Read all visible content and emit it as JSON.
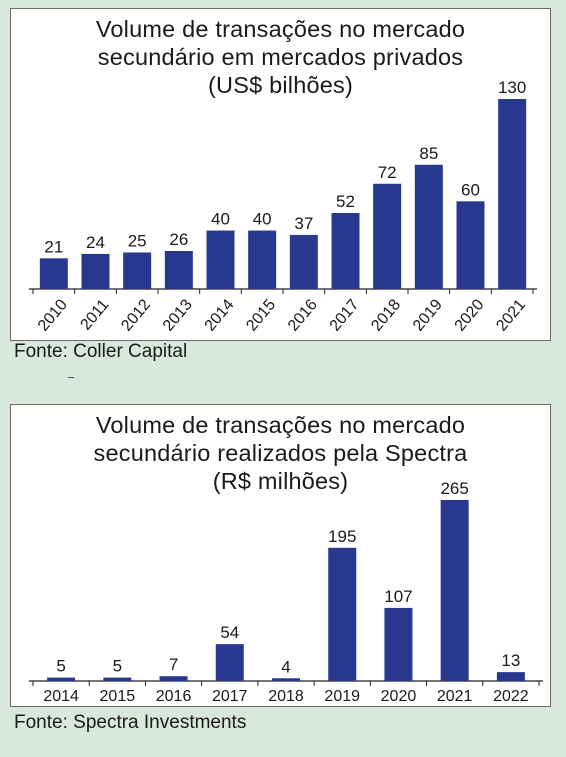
{
  "background_color": "#d9e8dc",
  "bar_color": "#28388f",
  "chart_data": [
    {
      "type": "bar",
      "title_lines": [
        "Volume de transações no mercado",
        "secundário em mercados privados",
        "(US$ bilhões)"
      ],
      "categories": [
        "2010",
        "2011",
        "2012",
        "2013",
        "2014",
        "2015",
        "2016",
        "2017",
        "2018",
        "2019",
        "2020",
        "2021"
      ],
      "values": [
        21,
        24,
        25,
        26,
        40,
        40,
        37,
        52,
        72,
        85,
        60,
        130
      ],
      "xlabel": "",
      "ylabel": "",
      "ylim": [
        0,
        130
      ],
      "grid": false,
      "x_tick_rotation": "rotated",
      "source": "Fonte: Coller Capital"
    },
    {
      "type": "bar",
      "title_lines": [
        "Volume de transações no mercado",
        "secundário realizados pela Spectra",
        "(R$ milhões)"
      ],
      "categories": [
        "2014",
        "2015",
        "2016",
        "2017",
        "2018",
        "2019",
        "2020",
        "2021",
        "2022"
      ],
      "values": [
        5,
        5,
        7,
        54,
        4,
        195,
        107,
        265,
        13
      ],
      "xlabel": "",
      "ylabel": "",
      "ylim": [
        0,
        265
      ],
      "grid": false,
      "x_tick_rotation": "horizontal",
      "source": "Fonte: Spectra Investments"
    }
  ]
}
